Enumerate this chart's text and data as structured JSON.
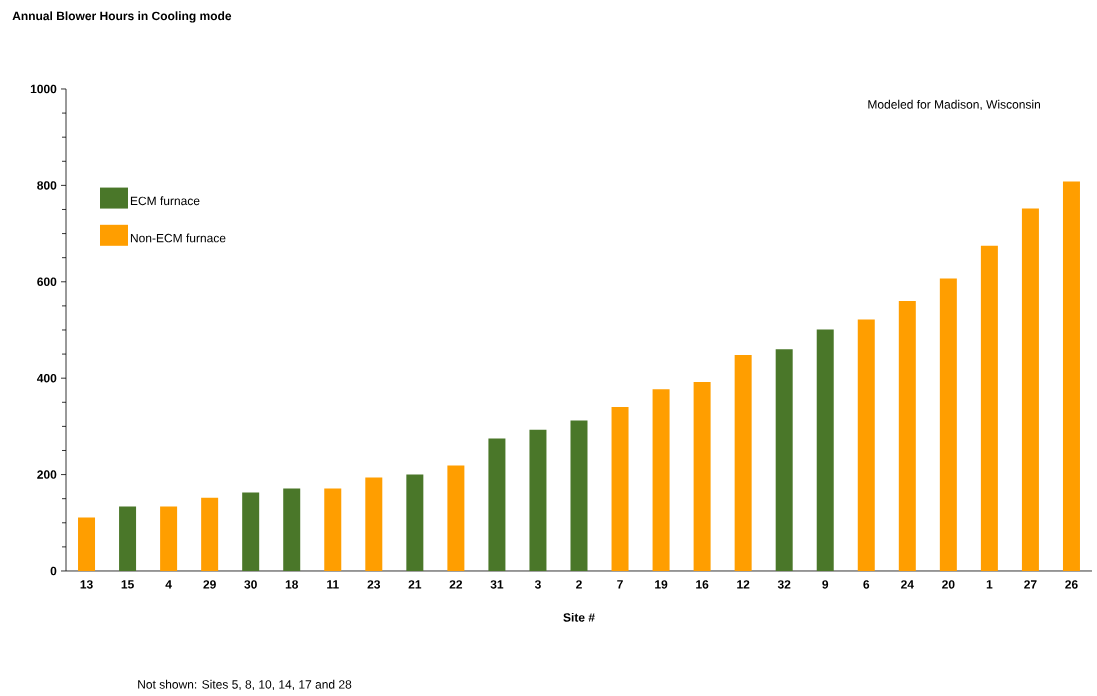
{
  "chart_data": {
    "type": "bar",
    "title": "Annual Blower Hours in Cooling mode",
    "xlabel": "Site #",
    "categories": [
      "13",
      "15",
      "4",
      "29",
      "30",
      "18",
      "11",
      "23",
      "21",
      "22",
      "31",
      "3",
      "2",
      "7",
      "19",
      "16",
      "12",
      "32",
      "9",
      "6",
      "24",
      "20",
      "1",
      "27",
      "26"
    ],
    "series": [
      {
        "name": "ECM furnace",
        "color": "#4a7729",
        "values": [
          null,
          134,
          null,
          null,
          163,
          171,
          null,
          null,
          200,
          null,
          275,
          293,
          312,
          null,
          null,
          null,
          null,
          460,
          501,
          null,
          null,
          null,
          null,
          null,
          null
        ]
      },
      {
        "name": "Non-ECM furnace",
        "color": "#ff9e00",
        "values": [
          111,
          null,
          134,
          152,
          null,
          null,
          171,
          194,
          null,
          219,
          null,
          null,
          null,
          340,
          377,
          392,
          448,
          null,
          null,
          522,
          560,
          607,
          675,
          752,
          808
        ]
      }
    ],
    "ylim": [
      0,
      1000
    ],
    "yticks": [
      0,
      200,
      400,
      600,
      800,
      1000
    ],
    "grid": false,
    "legend": "top left",
    "annotations": [
      "Modeled for Madison, Wisconsin",
      "Not shown:  Sites 5, 8, 10, 14, 17 and 28"
    ]
  }
}
